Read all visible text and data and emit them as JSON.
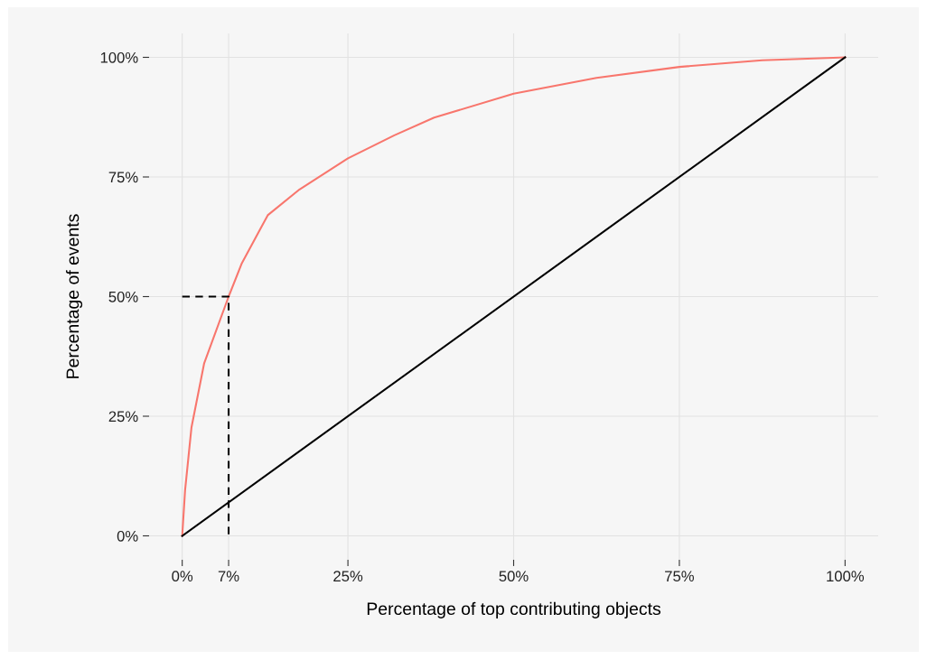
{
  "chart_data": {
    "type": "line",
    "xlabel": "Percentage of top contributing objects",
    "ylabel": "Percentage of events",
    "series": [
      {
        "color": "#f8766d",
        "x": [
          0,
          0.43,
          1.4,
          3.3,
          7,
          9,
          12.9,
          17.7,
          25,
          32,
          38,
          50,
          62.5,
          75,
          87.5,
          100
        ],
        "values": [
          0,
          9.5,
          22.7,
          36,
          50,
          57,
          67,
          72.4,
          78.9,
          83.7,
          87.4,
          92.4,
          95.7,
          98,
          99.4,
          100
        ]
      },
      {
        "color": "#000000",
        "x": [
          0,
          100
        ],
        "values": [
          0,
          100
        ]
      },
      {
        "color": "#000000",
        "line_style": "dashed",
        "x": [
          0,
          7,
          7
        ],
        "values": [
          50,
          50,
          0
        ]
      }
    ],
    "xlim": [
      -5,
      105
    ],
    "ylim": [
      -5,
      105
    ],
    "xticks": [
      {
        "value": 0,
        "label": "0%"
      },
      {
        "value": 7,
        "label": "7%"
      },
      {
        "value": 25,
        "label": "25%"
      },
      {
        "value": 50,
        "label": "50%"
      },
      {
        "value": 75,
        "label": "75%"
      },
      {
        "value": 100,
        "label": "100%"
      }
    ],
    "yticks": [
      {
        "value": 0,
        "label": "0%"
      },
      {
        "value": 25,
        "label": "25%"
      },
      {
        "value": 50,
        "label": "50%"
      },
      {
        "value": 75,
        "label": "75%"
      },
      {
        "value": 100,
        "label": "100%"
      }
    ],
    "grid": true
  }
}
